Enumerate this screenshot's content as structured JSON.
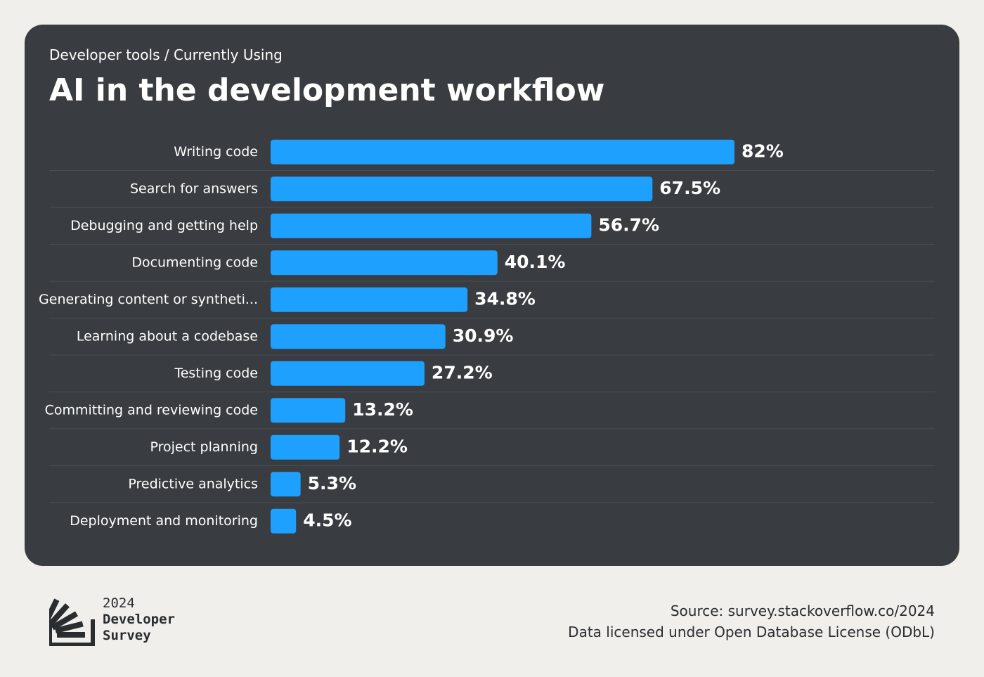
{
  "header": {
    "breadcrumb": "Developer tools / Currently Using",
    "title": "AI in the development workflow"
  },
  "colors": {
    "background": "#f0efeb",
    "card": "#393d41",
    "bar": "#1ea0ff",
    "text": "#ffffff",
    "separator": "#4a4f54"
  },
  "chart_data": {
    "type": "bar",
    "orientation": "horizontal",
    "title": "AI in the development workflow",
    "xlabel": "",
    "ylabel": "",
    "xlim": [
      0,
      100
    ],
    "grid": false,
    "categories": [
      "Writing code",
      "Search for answers",
      "Debugging and getting help",
      "Documenting code",
      "Generating content or syntheti...",
      "Learning about a codebase",
      "Testing code",
      "Committing and reviewing code",
      "Project planning",
      "Predictive analytics",
      "Deployment and monitoring"
    ],
    "values": [
      82,
      67.5,
      56.7,
      40.1,
      34.8,
      30.9,
      27.2,
      13.2,
      12.2,
      5.3,
      4.5
    ],
    "value_labels": [
      "82%",
      "67.5%",
      "56.7%",
      "40.1%",
      "34.8%",
      "30.9%",
      "27.2%",
      "13.2%",
      "12.2%",
      "5.3%",
      "4.5%"
    ]
  },
  "footer": {
    "logo": {
      "year": "2024",
      "line1": "Developer",
      "line2": "Survey"
    },
    "source": "Source: survey.stackoverflow.co/2024",
    "license": "Data licensed under Open Database License (ODbL)"
  }
}
